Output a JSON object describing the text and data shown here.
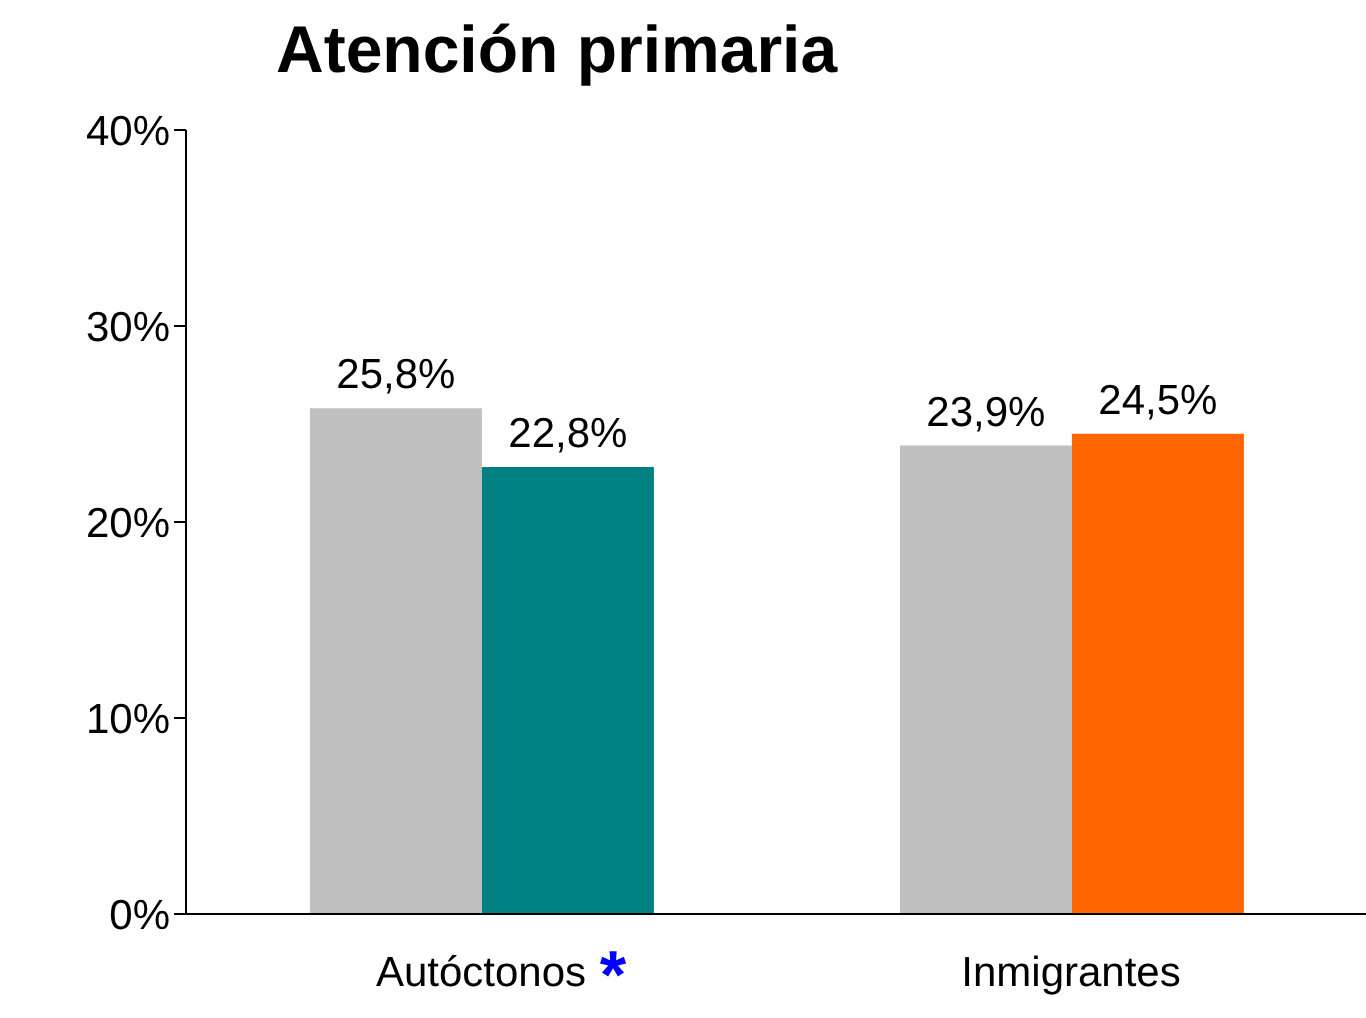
{
  "chart_data": {
    "type": "bar",
    "title": "Atención primaria",
    "categories": [
      "Autóctonos",
      "Inmigrantes"
    ],
    "series": [
      {
        "color": "#c0c0c0",
        "values": [
          25.8,
          23.9
        ],
        "value_labels": [
          "25,8%",
          "23,9%"
        ]
      },
      {
        "colors": [
          "#008080",
          "#ff6600"
        ],
        "values": [
          22.8,
          24.5
        ],
        "value_labels": [
          "22,8%",
          "24,5%"
        ]
      }
    ],
    "ylim": [
      0,
      40
    ],
    "yticks": [
      {
        "value": 0,
        "label": "0%"
      },
      {
        "value": 10,
        "label": "10%"
      },
      {
        "value": 20,
        "label": "20%"
      },
      {
        "value": 30,
        "label": "30%"
      },
      {
        "value": 40,
        "label": "40%"
      }
    ],
    "grid": false,
    "legend": false,
    "annotations": [
      "*"
    ]
  }
}
